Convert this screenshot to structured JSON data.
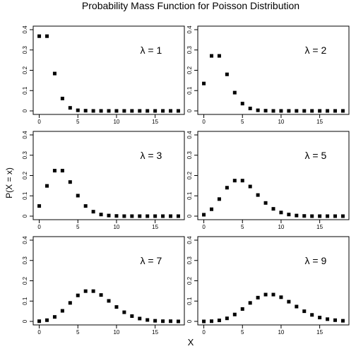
{
  "figure": {
    "title": "Probability Mass Function for Poisson Distribution",
    "xlabel": "X",
    "ylabel": "P(X = x)",
    "colors": {
      "points": "#000000",
      "frame": "#000000",
      "background": "#ffffff"
    }
  },
  "chart_data": [
    {
      "type": "scatter",
      "annotation": "λ = 1",
      "x": [
        0,
        1,
        2,
        3,
        4,
        5,
        6,
        7,
        8,
        9,
        10,
        11,
        12,
        13,
        14,
        15,
        16,
        17,
        18
      ],
      "y": [
        0.368,
        0.368,
        0.184,
        0.061,
        0.015,
        0.003,
        0.001,
        0,
        0,
        0,
        0,
        0,
        0,
        0,
        0,
        0,
        0,
        0,
        0
      ],
      "xlim": [
        0,
        18
      ],
      "ylim": [
        0,
        0.4
      ],
      "xticks": [
        0,
        5,
        10,
        15
      ],
      "yticks": [
        0,
        0.1,
        0.2,
        0.3,
        0.4
      ],
      "marker": "square",
      "grid": false
    },
    {
      "type": "scatter",
      "annotation": "λ = 2",
      "x": [
        0,
        1,
        2,
        3,
        4,
        5,
        6,
        7,
        8,
        9,
        10,
        11,
        12,
        13,
        14,
        15,
        16,
        17,
        18
      ],
      "y": [
        0.135,
        0.271,
        0.271,
        0.18,
        0.09,
        0.036,
        0.012,
        0.003,
        0.001,
        0,
        0,
        0,
        0,
        0,
        0,
        0,
        0,
        0,
        0
      ],
      "xlim": [
        0,
        18
      ],
      "ylim": [
        0,
        0.4
      ],
      "xticks": [
        0,
        5,
        10,
        15
      ],
      "yticks": [
        0,
        0.1,
        0.2,
        0.3,
        0.4
      ],
      "marker": "square",
      "grid": false
    },
    {
      "type": "scatter",
      "annotation": "λ = 3",
      "x": [
        0,
        1,
        2,
        3,
        4,
        5,
        6,
        7,
        8,
        9,
        10,
        11,
        12,
        13,
        14,
        15,
        16,
        17,
        18
      ],
      "y": [
        0.05,
        0.149,
        0.224,
        0.224,
        0.168,
        0.101,
        0.05,
        0.022,
        0.008,
        0.003,
        0.001,
        0,
        0,
        0,
        0,
        0,
        0,
        0,
        0
      ],
      "xlim": [
        0,
        18
      ],
      "ylim": [
        0,
        0.4
      ],
      "xticks": [
        0,
        5,
        10,
        15
      ],
      "yticks": [
        0,
        0.1,
        0.2,
        0.3,
        0.4
      ],
      "marker": "square",
      "grid": false
    },
    {
      "type": "scatter",
      "annotation": "λ = 5",
      "x": [
        0,
        1,
        2,
        3,
        4,
        5,
        6,
        7,
        8,
        9,
        10,
        11,
        12,
        13,
        14,
        15,
        16,
        17,
        18
      ],
      "y": [
        0.007,
        0.034,
        0.084,
        0.14,
        0.175,
        0.175,
        0.146,
        0.104,
        0.065,
        0.036,
        0.018,
        0.008,
        0.003,
        0.001,
        0,
        0,
        0,
        0,
        0
      ],
      "xlim": [
        0,
        18
      ],
      "ylim": [
        0,
        0.4
      ],
      "xticks": [
        0,
        5,
        10,
        15
      ],
      "yticks": [
        0,
        0.1,
        0.2,
        0.3,
        0.4
      ],
      "marker": "square",
      "grid": false
    },
    {
      "type": "scatter",
      "annotation": "λ = 7",
      "x": [
        0,
        1,
        2,
        3,
        4,
        5,
        6,
        7,
        8,
        9,
        10,
        11,
        12,
        13,
        14,
        15,
        16,
        17,
        18
      ],
      "y": [
        0.001,
        0.006,
        0.022,
        0.052,
        0.091,
        0.128,
        0.149,
        0.149,
        0.13,
        0.101,
        0.071,
        0.045,
        0.026,
        0.014,
        0.007,
        0.003,
        0.001,
        0.001,
        0
      ],
      "xlim": [
        0,
        18
      ],
      "ylim": [
        0,
        0.4
      ],
      "xticks": [
        0,
        5,
        10,
        15
      ],
      "yticks": [
        0,
        0.1,
        0.2,
        0.3,
        0.4
      ],
      "marker": "square",
      "grid": false
    },
    {
      "type": "scatter",
      "annotation": "λ = 9",
      "x": [
        0,
        1,
        2,
        3,
        4,
        5,
        6,
        7,
        8,
        9,
        10,
        11,
        12,
        13,
        14,
        15,
        16,
        17,
        18
      ],
      "y": [
        0,
        0.001,
        0.005,
        0.015,
        0.034,
        0.061,
        0.091,
        0.117,
        0.132,
        0.132,
        0.119,
        0.097,
        0.073,
        0.05,
        0.032,
        0.019,
        0.011,
        0.006,
        0.003
      ],
      "xlim": [
        0,
        18
      ],
      "ylim": [
        0,
        0.4
      ],
      "xticks": [
        0,
        5,
        10,
        15
      ],
      "yticks": [
        0,
        0.1,
        0.2,
        0.3,
        0.4
      ],
      "marker": "square",
      "grid": false
    }
  ]
}
